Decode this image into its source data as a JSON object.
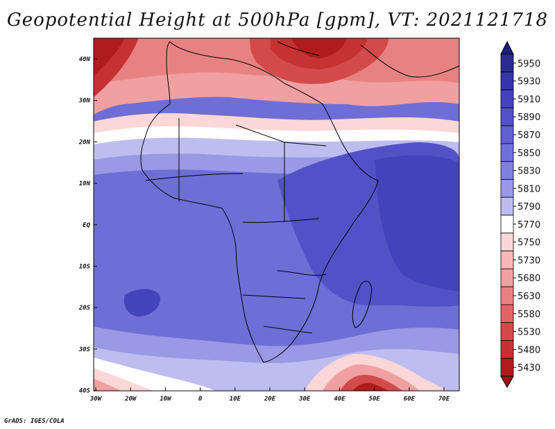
{
  "title": "Geopotential Height at 500hPa [gpm], VT: 2021121718",
  "credit": "GrADS: IGES/COLA",
  "lat_ticks": [
    "40N",
    "30N",
    "20N",
    "10N",
    "EQ",
    "10S",
    "20S",
    "30S",
    "40S"
  ],
  "lon_ticks": [
    "30W",
    "20W",
    "10W",
    "0",
    "10E",
    "20E",
    "30E",
    "40E",
    "50E",
    "60E",
    "70E"
  ],
  "map_extent": {
    "lon": [
      -30,
      75
    ],
    "lat": [
      -40,
      44
    ]
  },
  "legend": {
    "levels": [
      "5950",
      "5930",
      "5910",
      "5890",
      "5870",
      "5850",
      "5830",
      "5810",
      "5790",
      "5770",
      "5750",
      "5730",
      "5680",
      "5630",
      "5580",
      "5530",
      "5480",
      "5430"
    ],
    "colors": [
      "#2b2b8e",
      "#3636a8",
      "#4343bb",
      "#5252c6",
      "#6060d0",
      "#7070d8",
      "#8080de",
      "#9999e6",
      "#bdbdf0",
      "#ffffff",
      "#fbd7d7",
      "#f6b7b7",
      "#f0a0a0",
      "#e88282",
      "#e06666",
      "#d44a4a",
      "#c63232",
      "#b01c1c"
    ],
    "top_arrow_color": "#1c1c80",
    "bottom_arrow_color": "#a01010"
  }
}
